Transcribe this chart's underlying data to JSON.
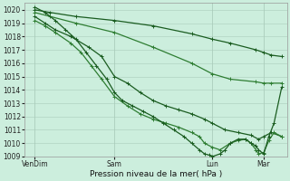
{
  "xlabel": "Pression niveau de la mer( hPa )",
  "bg_color": "#cceedd",
  "grid_color_major": "#aaccbb",
  "grid_color_minor": "#bbddcc",
  "line_dark": "#1a5c20",
  "line_mid": "#2e7d32",
  "ylim": [
    1009,
    1020.5
  ],
  "yticks": [
    1009,
    1010,
    1011,
    1012,
    1013,
    1014,
    1015,
    1016,
    1017,
    1018,
    1019,
    1020
  ],
  "xtick_labels": [
    "VenDim",
    "Sam",
    "Lun",
    "Mar"
  ],
  "xtick_pos": [
    0.04,
    0.35,
    0.73,
    0.93
  ],
  "lines": [
    {
      "x": [
        0.04,
        0.1,
        0.2,
        0.35,
        0.5,
        0.65,
        0.73,
        0.8,
        0.9,
        0.93,
        0.96,
        1.0
      ],
      "y": [
        1020.0,
        1019.8,
        1019.5,
        1019.2,
        1018.8,
        1018.2,
        1017.8,
        1017.5,
        1017.0,
        1016.8,
        1016.6,
        1016.5
      ]
    },
    {
      "x": [
        0.04,
        0.1,
        0.2,
        0.35,
        0.5,
        0.65,
        0.73,
        0.8,
        0.9,
        0.93,
        0.96,
        1.0
      ],
      "y": [
        1019.8,
        1019.5,
        1019.0,
        1018.3,
        1017.2,
        1016.0,
        1015.2,
        1014.8,
        1014.6,
        1014.5,
        1014.5,
        1014.5
      ]
    },
    {
      "x": [
        0.04,
        0.08,
        0.12,
        0.18,
        0.25,
        0.3,
        0.35,
        0.4,
        0.45,
        0.5,
        0.55,
        0.6,
        0.65,
        0.7,
        0.73,
        0.78,
        0.83,
        0.88,
        0.91,
        0.93,
        0.96,
        1.0
      ],
      "y": [
        1019.5,
        1019.0,
        1018.5,
        1018.0,
        1017.2,
        1016.5,
        1015.0,
        1014.5,
        1013.8,
        1013.2,
        1012.8,
        1012.5,
        1012.2,
        1011.8,
        1011.5,
        1011.0,
        1010.8,
        1010.6,
        1010.3,
        1010.5,
        1010.8,
        1010.5
      ]
    },
    {
      "x": [
        0.04,
        0.08,
        0.12,
        0.18,
        0.22,
        0.26,
        0.3,
        0.35,
        0.4,
        0.45,
        0.5,
        0.55,
        0.6,
        0.65,
        0.68,
        0.7,
        0.73,
        0.76,
        0.8,
        0.83,
        0.86,
        0.88,
        0.9,
        0.91,
        0.93,
        0.95,
        0.97,
        1.0
      ],
      "y": [
        1019.2,
        1018.8,
        1018.3,
        1017.5,
        1016.8,
        1015.8,
        1014.8,
        1013.5,
        1012.8,
        1012.2,
        1011.8,
        1011.5,
        1011.2,
        1010.8,
        1010.5,
        1010.0,
        1009.7,
        1009.5,
        1010.0,
        1010.2,
        1010.3,
        1010.0,
        1009.5,
        1009.2,
        1009.3,
        1010.2,
        1010.8,
        1010.5
      ]
    },
    {
      "x": [
        0.04,
        0.08,
        0.12,
        0.16,
        0.2,
        0.24,
        0.28,
        0.32,
        0.35,
        0.38,
        0.42,
        0.46,
        0.5,
        0.54,
        0.58,
        0.62,
        0.65,
        0.68,
        0.7,
        0.72,
        0.73,
        0.76,
        0.78,
        0.8,
        0.83,
        0.86,
        0.88,
        0.9,
        0.91,
        0.93,
        0.95,
        0.97,
        1.0
      ],
      "y": [
        1020.2,
        1019.8,
        1019.2,
        1018.5,
        1017.8,
        1016.8,
        1015.8,
        1014.8,
        1013.8,
        1013.2,
        1012.8,
        1012.4,
        1012.0,
        1011.5,
        1011.0,
        1010.5,
        1010.0,
        1009.5,
        1009.2,
        1009.1,
        1009.0,
        1009.2,
        1009.5,
        1010.0,
        1010.3,
        1010.3,
        1010.0,
        1009.8,
        1009.5,
        1009.2,
        1010.5,
        1011.5,
        1014.2
      ]
    }
  ],
  "marker": "+",
  "marker_size": 2.5,
  "linewidth": 0.9
}
